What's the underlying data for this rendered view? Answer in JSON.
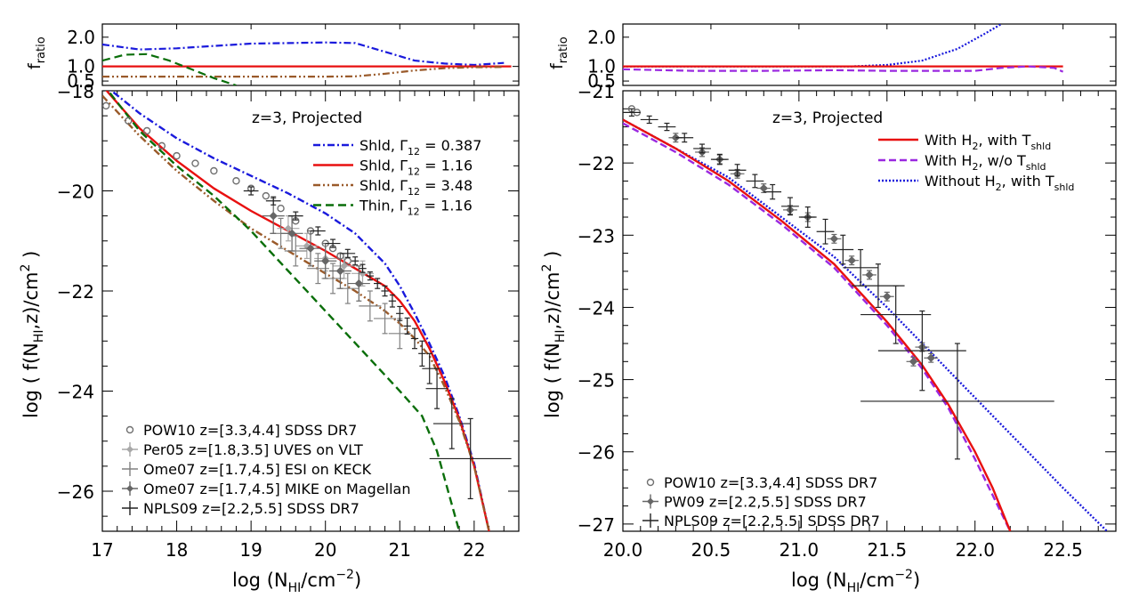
{
  "chart_data": [
    {
      "panel": "left",
      "type": "line",
      "xlabel": "log (N_HI/cm^-2)",
      "ylabel": "log ( f(N_HI,z)/cm^2 )",
      "ratio_ylabel": "f_ratio",
      "xlim": [
        17.0,
        22.6
      ],
      "ylim": [
        -26.8,
        -18.0
      ],
      "ratio_ylim": [
        0.35,
        2.45
      ],
      "x_ticks": [
        17,
        18,
        19,
        20,
        21,
        22
      ],
      "y_ticks": [
        -18,
        -20,
        -22,
        -24,
        -26
      ],
      "ratio_ticks": [
        2.0,
        1.0,
        0.5
      ],
      "x_tick_labels": [
        "17",
        "18",
        "19",
        "20",
        "21",
        "22"
      ],
      "y_tick_labels": [
        "−18",
        "−20",
        "−22",
        "−24",
        "−26"
      ],
      "ratio_tick_labels": [
        "2.0",
        "1.0",
        "0.5"
      ],
      "annotation": "z=3, Projected",
      "series": [
        {
          "name": "Shld, Γ 12 = 0.387",
          "label_main": "Shld, Γ",
          "label_sub": "12",
          "label_tail": " = 0.387",
          "color": "#1a1adc",
          "dash": "8,3,2,3",
          "x": [
            17.0,
            17.5,
            18.0,
            18.5,
            19.0,
            19.5,
            20.0,
            20.4,
            20.8,
            21.0,
            21.2,
            21.4,
            21.6,
            21.8,
            22.0,
            22.2
          ],
          "y": [
            -17.85,
            -18.45,
            -18.95,
            -19.35,
            -19.7,
            -20.05,
            -20.45,
            -20.85,
            -21.45,
            -21.9,
            -22.45,
            -23.05,
            -23.7,
            -24.5,
            -25.45,
            -26.8
          ]
        },
        {
          "name": "Shld, Γ 12 = 1.16",
          "label_main": "Shld, Γ",
          "label_sub": "12",
          "label_tail": " = 1.16",
          "color": "#e81010",
          "dash": "",
          "x": [
            17.0,
            17.5,
            18.0,
            18.5,
            19.0,
            19.5,
            20.0,
            20.4,
            20.8,
            21.0,
            21.2,
            21.4,
            21.6,
            21.8,
            22.0,
            22.2
          ],
          "y": [
            -17.9,
            -18.75,
            -19.4,
            -19.95,
            -20.4,
            -20.8,
            -21.2,
            -21.55,
            -21.9,
            -22.2,
            -22.6,
            -23.15,
            -23.8,
            -24.55,
            -25.5,
            -26.8
          ]
        },
        {
          "name": "Shld, Γ 12 = 3.48",
          "label_main": "Shld, Γ",
          "label_sub": "12",
          "label_tail": " = 3.48",
          "color": "#9a5a2a",
          "dash": "8,3,2,3,2,3",
          "x": [
            17.0,
            17.5,
            18.0,
            18.5,
            19.0,
            19.5,
            20.0,
            20.4,
            20.8,
            21.0,
            21.2,
            21.4,
            21.6,
            21.8,
            22.0,
            22.2
          ],
          "y": [
            -18.1,
            -18.9,
            -19.6,
            -20.2,
            -20.75,
            -21.2,
            -21.65,
            -22.0,
            -22.4,
            -22.65,
            -22.95,
            -23.3,
            -23.9,
            -24.6,
            -25.5,
            -26.8
          ]
        },
        {
          "name": "Thin, Γ 12 = 1.16",
          "label_main": "Thin, Γ",
          "label_sub": "12",
          "label_tail": " = 1.16",
          "color": "#0a6e0a",
          "dash": "9,5",
          "x": [
            17.0,
            17.5,
            18.0,
            18.5,
            19.0,
            19.5,
            20.0,
            20.5,
            21.0,
            21.3,
            21.5,
            21.65,
            21.8
          ],
          "y": [
            -17.85,
            -18.8,
            -19.5,
            -20.1,
            -20.8,
            -21.6,
            -22.4,
            -23.2,
            -24.0,
            -24.5,
            -25.2,
            -26.0,
            -26.8
          ]
        }
      ],
      "ratio_series": [
        {
          "name": "0.387 ratio",
          "color": "#1a1adc",
          "dash": "8,3,2,3",
          "x": [
            17.0,
            17.5,
            18.0,
            18.5,
            19.0,
            19.5,
            20.0,
            20.4,
            20.8,
            21.2,
            21.6,
            22.0,
            22.4
          ],
          "y": [
            1.75,
            1.58,
            1.62,
            1.7,
            1.78,
            1.8,
            1.82,
            1.8,
            1.5,
            1.2,
            1.1,
            1.05,
            1.12
          ]
        },
        {
          "name": "1.16 ratio",
          "color": "#e81010",
          "dash": "",
          "x": [
            17.0,
            22.5
          ],
          "y": [
            1.0,
            1.0
          ]
        },
        {
          "name": "3.48 ratio",
          "color": "#9a5a2a",
          "dash": "8,3,2,3,2,3",
          "x": [
            17.0,
            17.5,
            18.0,
            18.5,
            19.0,
            19.5,
            20.0,
            20.4,
            20.8,
            21.2,
            21.6,
            22.0,
            22.4
          ],
          "y": [
            0.65,
            0.65,
            0.65,
            0.65,
            0.65,
            0.65,
            0.65,
            0.66,
            0.75,
            0.86,
            0.94,
            0.97,
            0.98
          ]
        },
        {
          "name": "thin ratio",
          "color": "#0a6e0a",
          "dash": "9,5",
          "x": [
            17.0,
            17.3,
            17.6,
            17.9,
            18.2,
            18.5,
            18.8
          ],
          "y": [
            1.2,
            1.4,
            1.42,
            1.2,
            0.9,
            0.6,
            0.35
          ]
        }
      ],
      "data_sets": [
        {
          "name": "POW10 z=[3.3,4.4] SDSS DR7",
          "color": "#707070",
          "marker": "circle",
          "size": 3.5,
          "errx": 0,
          "erry": 0,
          "x": [
            17.05,
            17.35,
            17.6,
            17.8,
            18.0,
            18.25,
            18.5,
            18.8,
            19.0,
            19.2,
            19.4,
            19.6,
            19.8,
            20.0,
            20.1,
            20.2,
            20.3
          ],
          "y": [
            -18.3,
            -18.6,
            -18.8,
            -19.1,
            -19.3,
            -19.45,
            -19.6,
            -19.8,
            -19.95,
            -20.1,
            -20.35,
            -20.6,
            -20.8,
            -21.05,
            -21.15,
            -21.3,
            -21.4
          ]
        },
        {
          "name": "Per05 z=[1.8,3.5] UVES on VLT",
          "color": "#a8a8a8",
          "marker": "diamond",
          "size": 3.5,
          "errx": 0.15,
          "erry": 0.25,
          "x": [
            19.5,
            19.75,
            20.0,
            20.25,
            20.5
          ],
          "y": [
            -20.75,
            -21.1,
            -21.35,
            -21.5,
            -21.65
          ]
        },
        {
          "name": "Ome07 z=[1.7,4.5] ESI on KECK",
          "color": "#808080",
          "marker": "bar",
          "size": 0,
          "errx": 0.15,
          "erry": 0.3,
          "x": [
            19.4,
            19.6,
            19.9,
            20.1,
            20.3,
            20.6,
            20.8,
            21.0
          ],
          "y": [
            -20.85,
            -21.2,
            -21.55,
            -21.75,
            -21.95,
            -22.3,
            -22.55,
            -22.85
          ]
        },
        {
          "name": "Ome07 z=[1.7,4.5] MIKE on Magellan",
          "color": "#666666",
          "marker": "diamond",
          "size": 4,
          "errx": 0.15,
          "erry": 0.35,
          "x": [
            19.3,
            19.55,
            19.8,
            20.0,
            20.2,
            20.45
          ],
          "y": [
            -20.5,
            -20.85,
            -21.15,
            -21.4,
            -21.6,
            -21.85
          ]
        },
        {
          "name": "NPLS09 z=[2.2,5.5] SDSS DR7",
          "color": "#222222",
          "marker": "bar",
          "size": 0,
          "x": [
            19.0,
            19.3,
            19.6,
            19.9,
            20.1,
            20.3,
            20.4,
            20.5,
            20.6,
            20.7,
            20.8,
            20.9,
            21.0,
            21.1,
            21.2,
            21.3,
            21.4,
            21.5,
            21.7,
            21.95
          ],
          "y": [
            -20.0,
            -20.2,
            -20.5,
            -20.8,
            -21.05,
            -21.25,
            -21.4,
            -21.55,
            -21.7,
            -21.85,
            -22.0,
            -22.2,
            -22.45,
            -22.7,
            -22.95,
            -23.25,
            -23.55,
            -23.95,
            -24.65,
            -25.35
          ],
          "xerr": [
            0.1,
            0.1,
            0.1,
            0.1,
            0.1,
            0.1,
            0.05,
            0.05,
            0.05,
            0.05,
            0.05,
            0.05,
            0.05,
            0.05,
            0.05,
            0.05,
            0.1,
            0.15,
            0.25,
            0.55
          ],
          "yerr": [
            0.08,
            0.08,
            0.08,
            0.08,
            0.08,
            0.08,
            0.08,
            0.08,
            0.08,
            0.1,
            0.1,
            0.12,
            0.14,
            0.16,
            0.2,
            0.25,
            0.3,
            0.4,
            0.5,
            0.8
          ]
        }
      ]
    },
    {
      "panel": "right",
      "type": "line",
      "xlabel": "log (N_HI/cm^-2)",
      "ylabel": "log ( f(N_HI,z)/cm^2 )",
      "ratio_ylabel": "f_ratio",
      "xlim": [
        20.0,
        22.8
      ],
      "ylim": [
        -27.1,
        -21.0
      ],
      "ratio_ylim": [
        0.35,
        2.45
      ],
      "x_ticks": [
        20.0,
        20.5,
        21.0,
        21.5,
        22.0,
        22.5
      ],
      "y_ticks": [
        -21,
        -22,
        -23,
        -24,
        -25,
        -26,
        -27
      ],
      "ratio_ticks": [
        2.0,
        1.0,
        0.5
      ],
      "x_tick_labels": [
        "20.0",
        "20.5",
        "21.0",
        "21.5",
        "22.0",
        "22.5"
      ],
      "y_tick_labels": [
        "−21",
        "−22",
        "−23",
        "−24",
        "−25",
        "−26",
        "−27"
      ],
      "ratio_tick_labels": [
        "2.0",
        "1.0",
        "0.5"
      ],
      "annotation": "z=3, Projected",
      "series": [
        {
          "name": "Without H2, with T shld",
          "label_main": "Without H",
          "label_sub": "2",
          "label_tail": ", with T",
          "label_sub2": "shld",
          "color": "#1a1adc",
          "dash": "2,2",
          "x": [
            20.0,
            20.3,
            20.6,
            20.9,
            21.2,
            21.5,
            21.7,
            21.9,
            22.1,
            22.3,
            22.5,
            22.75
          ],
          "y": [
            -21.4,
            -21.8,
            -22.2,
            -22.75,
            -23.3,
            -24.0,
            -24.5,
            -25.0,
            -25.5,
            -26.0,
            -26.5,
            -27.1
          ]
        },
        {
          "name": "With H2, w/o T shld",
          "label_main": "With H",
          "label_sub": "2",
          "label_tail": ", w/o T",
          "label_sub2": "shld",
          "color": "#9a28e0",
          "dash": "8,4",
          "x": [
            20.0,
            20.3,
            20.6,
            20.9,
            21.2,
            21.5,
            21.7,
            21.85,
            22.0,
            22.1,
            22.2
          ],
          "y": [
            -21.45,
            -21.85,
            -22.3,
            -22.85,
            -23.45,
            -24.25,
            -24.85,
            -25.4,
            -26.1,
            -26.6,
            -27.1
          ]
        },
        {
          "name": "With H2, with T shld",
          "label_main": "With H",
          "label_sub": "2",
          "label_tail": ", with T",
          "label_sub2": "shld",
          "color": "#e81010",
          "dash": "",
          "x": [
            20.0,
            20.3,
            20.6,
            20.9,
            21.2,
            21.5,
            21.7,
            21.85,
            22.0,
            22.1,
            22.2
          ],
          "y": [
            -21.4,
            -21.8,
            -22.25,
            -22.8,
            -23.4,
            -24.2,
            -24.8,
            -25.35,
            -26.0,
            -26.5,
            -27.1
          ]
        }
      ],
      "legend_order": [
        2,
        1,
        0
      ],
      "ratio_series": [
        {
          "name": "without H2 ratio",
          "color": "#1a1adc",
          "dash": "2,2",
          "x": [
            20.0,
            20.5,
            21.0,
            21.3,
            21.5,
            21.7,
            21.9,
            22.05,
            22.15
          ],
          "y": [
            1.0,
            1.0,
            1.0,
            1.0,
            1.05,
            1.2,
            1.6,
            2.1,
            2.45
          ]
        },
        {
          "name": "with H2 ratio",
          "color": "#e81010",
          "dash": "",
          "x": [
            20.0,
            22.5
          ],
          "y": [
            1.0,
            1.0
          ]
        },
        {
          "name": "w/o Tshld ratio",
          "color": "#9a28e0",
          "dash": "8,4",
          "x": [
            20.0,
            20.4,
            20.8,
            21.2,
            21.5,
            21.8,
            22.0,
            22.15,
            22.3,
            22.45,
            22.5
          ],
          "y": [
            0.9,
            0.85,
            0.85,
            0.87,
            0.85,
            0.85,
            0.85,
            0.95,
            1.0,
            0.95,
            0.82
          ]
        }
      ],
      "data_sets": [
        {
          "name": "POW10 z=[3.3,4.4] SDSS DR7",
          "color": "#707070",
          "marker": "circle",
          "size": 3.5,
          "errx": 0,
          "erry": 0,
          "x": [
            20.05,
            20.08
          ],
          "y": [
            -21.25,
            -21.3
          ]
        },
        {
          "name": "PW09 z=[2.2,5.5] SDSS DR7",
          "color": "#666666",
          "marker": "diamond",
          "size": 4,
          "errx": 0.04,
          "erry": 0.06,
          "x": [
            20.3,
            20.45,
            20.55,
            20.65,
            20.8,
            20.95,
            21.05,
            21.2,
            21.3,
            21.4,
            21.5,
            21.65,
            21.7,
            21.75
          ],
          "y": [
            -21.65,
            -21.85,
            -21.95,
            -22.15,
            -22.35,
            -22.65,
            -22.75,
            -23.05,
            -23.35,
            -23.55,
            -23.85,
            -24.75,
            -24.55,
            -24.7
          ]
        },
        {
          "name": "NPLS09 z=[2.2,5.5] SDSS DR7",
          "color": "#222222",
          "marker": "bar",
          "size": 0,
          "x": [
            20.05,
            20.15,
            20.25,
            20.35,
            20.45,
            20.55,
            20.65,
            20.75,
            20.85,
            20.95,
            21.05,
            21.15,
            21.25,
            21.35,
            21.45,
            21.55,
            21.7,
            21.9
          ],
          "y": [
            -21.3,
            -21.4,
            -21.5,
            -21.65,
            -21.8,
            -21.95,
            -22.1,
            -22.25,
            -22.4,
            -22.6,
            -22.75,
            -22.95,
            -23.2,
            -23.45,
            -23.7,
            -24.1,
            -24.6,
            -25.3
          ],
          "xerr": [
            0.05,
            0.05,
            0.05,
            0.05,
            0.05,
            0.05,
            0.05,
            0.05,
            0.05,
            0.05,
            0.05,
            0.05,
            0.06,
            0.1,
            0.15,
            0.2,
            0.25,
            0.55
          ],
          "yerr": [
            0.05,
            0.05,
            0.05,
            0.06,
            0.06,
            0.07,
            0.08,
            0.09,
            0.1,
            0.12,
            0.14,
            0.17,
            0.2,
            0.25,
            0.3,
            0.4,
            0.55,
            0.8
          ]
        }
      ]
    }
  ]
}
